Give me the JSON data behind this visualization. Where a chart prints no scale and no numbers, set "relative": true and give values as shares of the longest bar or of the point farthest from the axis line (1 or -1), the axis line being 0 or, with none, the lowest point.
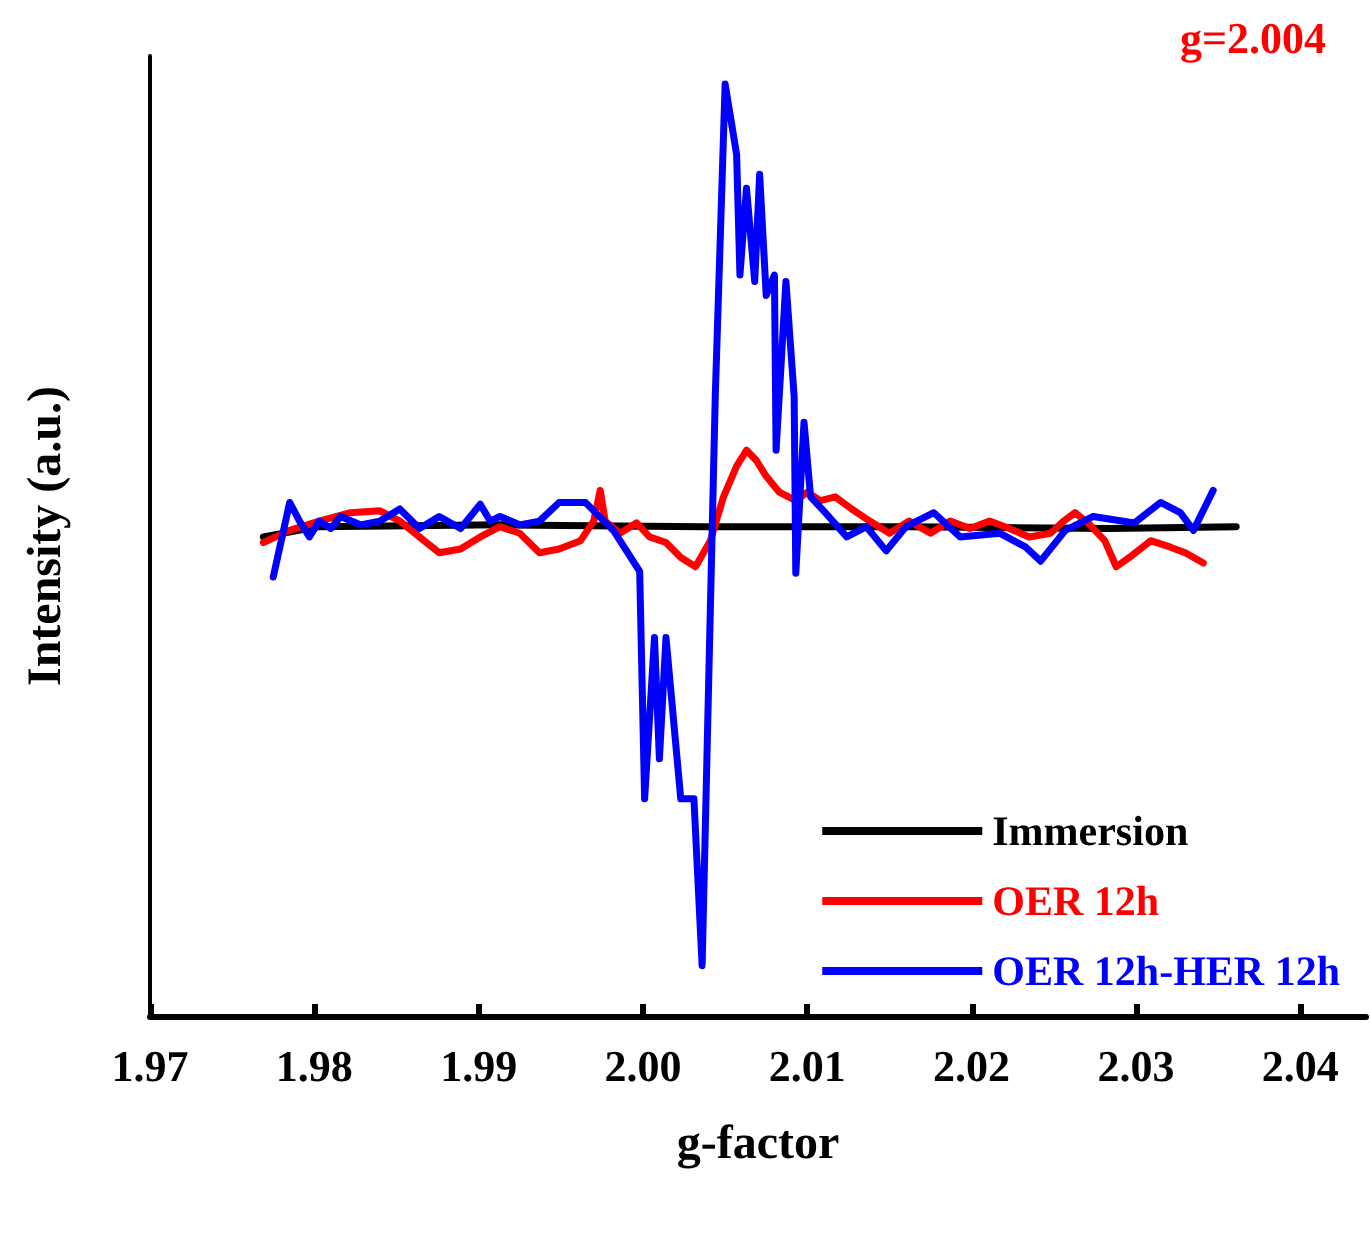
{
  "chart_data": {
    "type": "line",
    "relative": true,
    "xlabel": "g-factor",
    "ylabel": "Intensity (a.u.)",
    "annotations": [
      "g=2.004"
    ],
    "xlim": [
      1.97,
      2.044
    ],
    "xticks": [
      {
        "value": 1.97,
        "label": "1.97"
      },
      {
        "value": 1.98,
        "label": "1.98"
      },
      {
        "value": 1.99,
        "label": "1.99"
      },
      {
        "value": 2.0,
        "label": "2.00"
      },
      {
        "value": 2.01,
        "label": "2.01"
      },
      {
        "value": 2.02,
        "label": "2.02"
      },
      {
        "value": 2.03,
        "label": "2.03"
      },
      {
        "value": 2.04,
        "label": "2.04"
      }
    ],
    "legend": "bottom right",
    "grid": false,
    "marker": "none",
    "line_style": "solid",
    "tick_labels": "x",
    "series": [
      {
        "name": "Immersion",
        "color": "#000000",
        "x": [
          1.9769,
          1.9803,
          1.9913,
          2.0036,
          2.0162,
          2.0284,
          2.0361
        ],
        "values": [
          0.514,
          0.525,
          0.527,
          0.525,
          0.525,
          0.523,
          0.525
        ]
      },
      {
        "name": "OER 12h",
        "color": "#ff0000",
        "x": [
          1.9769,
          1.9785,
          1.9803,
          1.9822,
          1.984,
          1.9852,
          1.9864,
          1.9876,
          1.9889,
          1.9901,
          1.9913,
          1.9925,
          1.9937,
          1.9949,
          1.9962,
          1.997,
          1.9974,
          1.9977,
          1.9986,
          1.9996,
          2.0004,
          2.0014,
          2.0023,
          2.0032,
          2.0041,
          2.0049,
          2.0057,
          2.0063,
          2.0069,
          2.0075,
          2.0083,
          2.0093,
          2.01,
          2.0108,
          2.0117,
          2.0127,
          2.0138,
          2.015,
          2.0162,
          2.0175,
          2.0187,
          2.0199,
          2.0211,
          2.0223,
          2.0235,
          2.0248,
          2.0256,
          2.0263,
          2.0272,
          2.0281,
          2.0288,
          2.0296,
          2.0309,
          2.0321,
          2.033,
          2.0341
        ],
        "values": [
          0.508,
          0.521,
          0.531,
          0.54,
          0.542,
          0.531,
          0.514,
          0.497,
          0.501,
          0.514,
          0.525,
          0.518,
          0.497,
          0.501,
          0.51,
          0.531,
          0.564,
          0.531,
          0.518,
          0.529,
          0.514,
          0.508,
          0.492,
          0.482,
          0.51,
          0.557,
          0.59,
          0.607,
          0.596,
          0.579,
          0.562,
          0.553,
          0.562,
          0.553,
          0.557,
          0.544,
          0.531,
          0.518,
          0.531,
          0.518,
          0.531,
          0.523,
          0.531,
          0.523,
          0.514,
          0.518,
          0.531,
          0.54,
          0.527,
          0.51,
          0.482,
          0.492,
          0.51,
          0.503,
          0.497,
          0.486
        ]
      },
      {
        "name": "OER 12h-HER 12h",
        "color": "#0000ff",
        "x": [
          1.9775,
          1.9785,
          1.9791,
          1.9797,
          1.9803,
          1.981,
          1.9816,
          1.9828,
          1.984,
          1.9852,
          1.9864,
          1.9876,
          1.9889,
          1.9901,
          1.9907,
          1.9913,
          1.9925,
          1.9937,
          1.9949,
          1.9965,
          1.9982,
          1.999,
          1.9998,
          2.0001,
          2.0007,
          2.001,
          2.0014,
          2.0023,
          2.0031,
          2.0036,
          2.0044,
          2.005,
          2.0057,
          2.0059,
          2.0063,
          2.0068,
          2.0071,
          2.0075,
          2.008,
          2.0081,
          2.0087,
          2.0092,
          2.0093,
          2.0098,
          2.0102,
          2.0111,
          2.0124,
          2.0136,
          2.0148,
          2.016,
          2.0177,
          2.0193,
          2.0217,
          2.0233,
          2.0242,
          2.0257,
          2.0274,
          2.0299,
          2.0315,
          2.0327,
          2.0335,
          2.0347
        ],
        "values": [
          0.471,
          0.551,
          0.531,
          0.514,
          0.531,
          0.523,
          0.536,
          0.527,
          0.531,
          0.544,
          0.523,
          0.536,
          0.523,
          0.549,
          0.531,
          0.536,
          0.527,
          0.531,
          0.551,
          0.551,
          0.521,
          0.499,
          0.477,
          0.233,
          0.406,
          0.276,
          0.406,
          0.233,
          0.233,
          0.054,
          0.665,
          1.0,
          0.924,
          0.795,
          0.888,
          0.788,
          0.903,
          0.773,
          0.795,
          0.607,
          0.788,
          0.665,
          0.475,
          0.637,
          0.557,
          0.54,
          0.514,
          0.525,
          0.499,
          0.525,
          0.54,
          0.514,
          0.518,
          0.503,
          0.488,
          0.521,
          0.536,
          0.529,
          0.551,
          0.54,
          0.521,
          0.564
        ]
      }
    ]
  }
}
